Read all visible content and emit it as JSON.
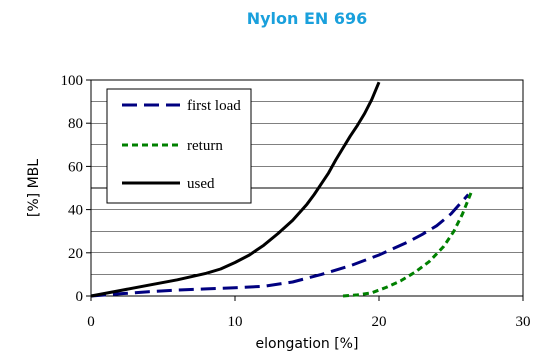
{
  "chart_data": {
    "type": "line",
    "title": "Nylon EN 696",
    "xlabel": "elongation [%]",
    "ylabel": "[%] MBL",
    "xlim": [
      0,
      30
    ],
    "ylim": [
      0,
      100
    ],
    "x_ticks": [
      "0",
      "10",
      "20",
      "30"
    ],
    "y_ticks": [
      "0",
      "20",
      "40",
      "60",
      "80",
      "100"
    ],
    "grid": "horizontal",
    "legend_position": "top-left",
    "series": [
      {
        "name": "first load",
        "style": "dashed-long",
        "color": "#000080",
        "x": [
          0,
          2,
          4,
          6,
          8,
          10,
          12,
          14,
          16,
          18,
          19,
          20,
          21,
          22,
          23,
          24,
          25,
          26.2
        ],
        "y": [
          0,
          1,
          2,
          2.8,
          3.3,
          3.8,
          4.5,
          6.5,
          10,
          14,
          16.5,
          19,
          22,
          25,
          28.5,
          32.5,
          38,
          47
        ]
      },
      {
        "name": "return",
        "style": "dashed-short",
        "color": "#008000",
        "x": [
          17.5,
          18.5,
          19.5,
          20.5,
          21.5,
          22.5,
          23.5,
          24.5,
          25.2,
          25.8,
          26.4
        ],
        "y": [
          0,
          0.5,
          1.5,
          4,
          7,
          11,
          16,
          23,
          30,
          38,
          48
        ]
      },
      {
        "name": "used",
        "style": "solid",
        "color": "#000000",
        "x": [
          0,
          2,
          4,
          6,
          8,
          9,
          10,
          11,
          12,
          13,
          14,
          15,
          15.5,
          16,
          16.5,
          17,
          17.5,
          18,
          18.5,
          19,
          19.5,
          20
        ],
        "y": [
          0,
          2.5,
          5,
          7.5,
          10.5,
          12.5,
          15.5,
          19,
          23.5,
          29,
          35,
          42.5,
          47,
          52,
          57,
          63,
          68.5,
          74,
          79,
          84.5,
          91,
          99
        ]
      }
    ]
  }
}
